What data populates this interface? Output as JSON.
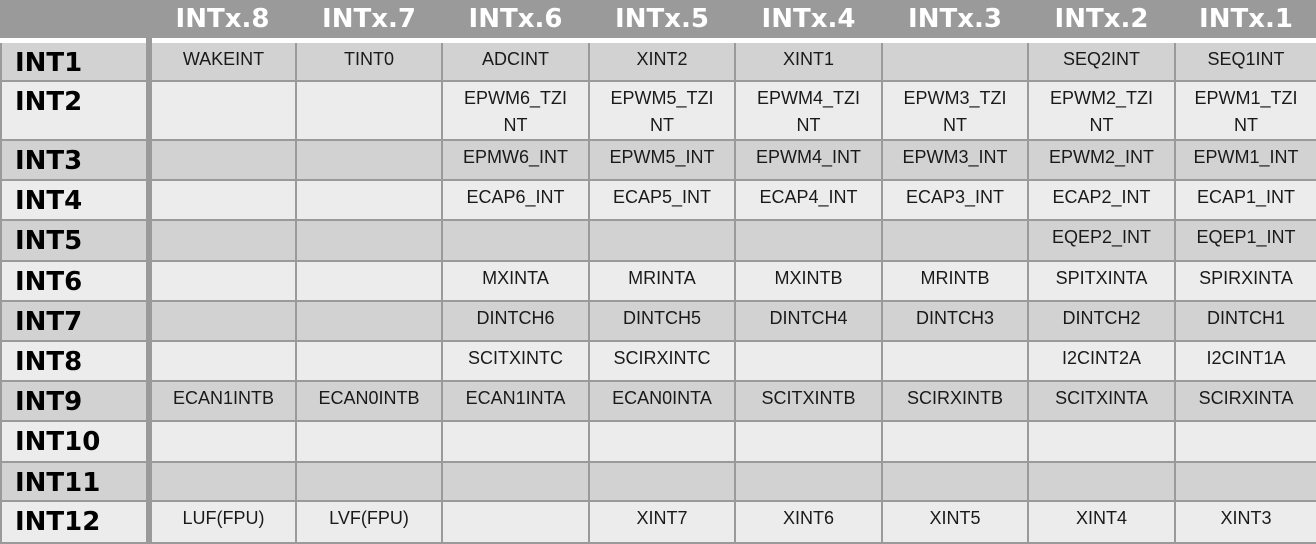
{
  "header": {
    "columns": [
      "INTx.8",
      "INTx.7",
      "INTx.6",
      "INTx.5",
      "INTx.4",
      "INTx.3",
      "INTx.2",
      "INTx.1"
    ]
  },
  "rows": [
    {
      "label": "INT1",
      "cells": [
        "WAKEINT",
        "TINT0",
        "ADCINT",
        "XINT2",
        "XINT1",
        "",
        "SEQ2INT",
        "SEQ1INT"
      ]
    },
    {
      "label": "INT2",
      "cells": [
        "",
        "",
        "EPWM6_TZI\nNT",
        "EPWM5_TZI\nNT",
        "EPWM4_TZI\nNT",
        "EPWM3_TZI\nNT",
        "EPWM2_TZI\nNT",
        "EPWM1_TZI\nNT"
      ]
    },
    {
      "label": "INT3",
      "cells": [
        "",
        "",
        "EPMW6_INT",
        "EPWM5_INT",
        "EPWM4_INT",
        "EPWM3_INT",
        "EPWM2_INT",
        "EPWM1_INT"
      ]
    },
    {
      "label": "INT4",
      "cells": [
        "",
        "",
        "ECAP6_INT",
        "ECAP5_INT",
        "ECAP4_INT",
        "ECAP3_INT",
        "ECAP2_INT",
        "ECAP1_INT"
      ]
    },
    {
      "label": "INT5",
      "cells": [
        "",
        "",
        "",
        "",
        "",
        "",
        "EQEP2_INT",
        "EQEP1_INT"
      ]
    },
    {
      "label": "INT6",
      "cells": [
        "",
        "",
        "MXINTA",
        "MRINTA",
        "MXINTB",
        "MRINTB",
        "SPITXINTA",
        "SPIRXINTA"
      ]
    },
    {
      "label": "INT7",
      "cells": [
        "",
        "",
        "DINTCH6",
        "DINTCH5",
        "DINTCH4",
        "DINTCH3",
        "DINTCH2",
        "DINTCH1"
      ]
    },
    {
      "label": "INT8",
      "cells": [
        "",
        "",
        "SCITXINTC",
        "SCIRXINTC",
        "",
        "",
        "I2CINT2A",
        "I2CINT1A"
      ]
    },
    {
      "label": "INT9",
      "cells": [
        "ECAN1INTB",
        "ECAN0INTB",
        "ECAN1INTA",
        "ECAN0INTA",
        "SCITXINTB",
        "SCIRXINTB",
        "SCITXINTA",
        "SCIRXINTA"
      ]
    },
    {
      "label": "INT10",
      "cells": [
        "",
        "",
        "",
        "",
        "",
        "",
        "",
        ""
      ]
    },
    {
      "label": "INT11",
      "cells": [
        "",
        "",
        "",
        "",
        "",
        "",
        "",
        ""
      ]
    },
    {
      "label": "INT12",
      "cells": [
        "LUF(FPU)",
        "LVF(FPU)",
        "",
        "XINT7",
        "XINT6",
        "XINT5",
        "XINT4",
        "XINT3"
      ]
    }
  ],
  "colors": {
    "header_bg": "#9a9a9a",
    "header_text": "#ffffff",
    "row_light": "#ececec",
    "row_dark": "#d2d2d2",
    "grid_line": "#9a9a9a"
  }
}
